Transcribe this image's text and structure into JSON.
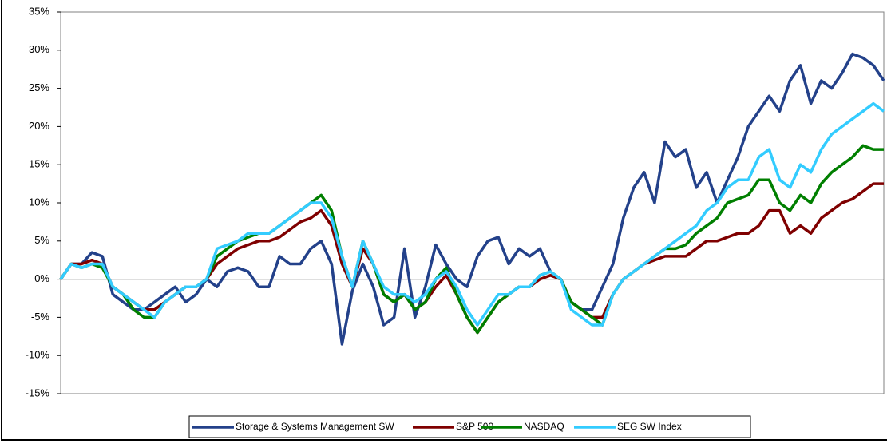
{
  "chart_data": {
    "type": "line",
    "ylim": [
      -15,
      35
    ],
    "yticks": [
      {
        "value": -15,
        "label": "-15%"
      },
      {
        "value": -10,
        "label": "-10%"
      },
      {
        "value": -5,
        "label": "-5%"
      },
      {
        "value": 0,
        "label": "0%"
      },
      {
        "value": 5,
        "label": "5%"
      },
      {
        "value": 10,
        "label": "10%"
      },
      {
        "value": 15,
        "label": "15%"
      },
      {
        "value": 20,
        "label": "20%"
      },
      {
        "value": 25,
        "label": "25%"
      },
      {
        "value": 30,
        "label": "30%"
      },
      {
        "value": 35,
        "label": "35%"
      }
    ],
    "series": [
      {
        "name": "Storage & Systems Management SW",
        "color": "#23418a",
        "values": [
          0,
          2,
          2,
          3.5,
          3,
          -2,
          -3,
          -4,
          -4,
          -3,
          -2,
          -1,
          -3,
          -2,
          0,
          -1,
          1,
          1.5,
          1,
          -1,
          -1,
          3,
          2,
          2,
          4,
          5,
          2,
          -8.5,
          -1.5,
          2,
          -1,
          -6,
          -5,
          4,
          -5,
          -1,
          4.5,
          2,
          0,
          -1,
          3,
          5,
          5.5,
          2,
          4,
          3,
          4,
          1,
          0,
          -3,
          -4,
          -4,
          -1,
          2,
          8,
          12,
          14,
          10,
          18,
          16,
          17,
          12,
          14,
          10,
          13,
          16,
          20,
          22,
          24,
          22,
          26,
          28,
          23,
          26,
          25,
          27,
          29.5,
          29,
          28,
          26
        ]
      },
      {
        "name": "S&P 500",
        "color": "#7f0000",
        "values": [
          0,
          2,
          2,
          2.5,
          2,
          -1,
          -2,
          -3,
          -4,
          -4,
          -3,
          -2,
          -1,
          -1,
          0,
          2,
          3,
          4,
          4.5,
          5,
          5,
          5.5,
          6.5,
          7.5,
          8,
          9,
          7,
          2,
          -1,
          4,
          2,
          -2,
          -3,
          -2,
          -4,
          -3,
          -1,
          0.5,
          -2,
          -5,
          -7,
          -5,
          -3,
          -2,
          -1,
          -1,
          0,
          0.5,
          0,
          -3,
          -4,
          -5,
          -5,
          -2,
          0,
          1,
          2,
          2.5,
          3,
          3,
          3,
          4,
          5,
          5,
          5.5,
          6,
          6,
          7,
          9,
          9,
          6,
          7,
          6,
          8,
          9,
          10,
          10.5,
          11.5,
          12.5,
          12.5
        ]
      },
      {
        "name": "NASDAQ",
        "color": "#007f00",
        "values": [
          0,
          2,
          1.5,
          2,
          1.5,
          -1,
          -2,
          -4,
          -5,
          -5,
          -3,
          -2,
          -1,
          -1,
          0,
          3,
          4,
          5,
          5.5,
          6,
          6,
          7,
          8,
          9,
          10,
          11,
          9,
          3,
          -1,
          5,
          2,
          -2,
          -3,
          -2,
          -4,
          -3,
          0,
          1.5,
          -2,
          -5,
          -7,
          -5,
          -3,
          -2,
          -1,
          -1,
          0.5,
          1,
          0,
          -3,
          -4,
          -5,
          -6,
          -2,
          0,
          1,
          2,
          3,
          4,
          4,
          4.5,
          6,
          7,
          8,
          10,
          10.5,
          11,
          13,
          13,
          10,
          9,
          11,
          10,
          12.5,
          14,
          15,
          16,
          17.5,
          17,
          17
        ]
      },
      {
        "name": "SEG SW Index",
        "color": "#33ccff",
        "values": [
          0,
          2,
          1.5,
          2,
          2,
          -1,
          -2,
          -3,
          -4,
          -5,
          -3,
          -2,
          -1,
          -1,
          0,
          4,
          4.5,
          5,
          6,
          6,
          6,
          7,
          8,
          9,
          10,
          10,
          8,
          3,
          -1,
          5,
          2,
          -1,
          -2,
          -2,
          -3,
          -2,
          0,
          1,
          -1,
          -4,
          -6,
          -4,
          -2,
          -2,
          -1,
          -1,
          0.5,
          1,
          0,
          -4,
          -5,
          -6,
          -6,
          -2,
          0,
          1,
          2,
          3,
          4,
          5,
          6,
          7,
          9,
          10,
          12,
          13,
          13,
          16,
          17,
          13,
          12,
          15,
          14,
          17,
          19,
          20,
          21,
          22,
          23,
          22
        ]
      }
    ]
  }
}
